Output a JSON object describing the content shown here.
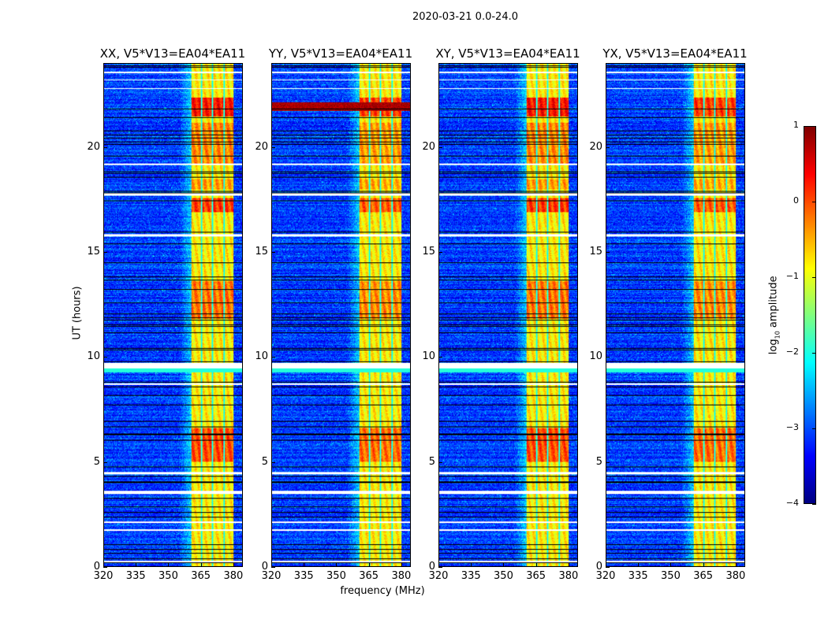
{
  "chart_data": {
    "type": "heatmap",
    "title": "2020-03-21 0.0-24.0",
    "xlabel": "frequency (MHz)",
    "ylabel": "UT (hours)",
    "xlim": [
      320,
      384.4
    ],
    "ylim": [
      0,
      24
    ],
    "xticks": [
      320,
      335,
      350,
      365,
      380
    ],
    "yticks": [
      0,
      5,
      10,
      15,
      20
    ],
    "panels": [
      {
        "title": "XX, V5*V13=EA04*EA11",
        "broadband_rfi": false
      },
      {
        "title": "YY, V5*V13=EA04*EA11",
        "broadband_rfi": true
      },
      {
        "title": "XY, V5*V13=EA04*EA11",
        "broadband_rfi": false
      },
      {
        "title": "YX, V5*V13=EA04*EA11",
        "broadband_rfi": false
      }
    ],
    "background_log_amplitude": -3.1,
    "rfi_band_mhz": [
      360.7,
      380.4
    ],
    "rfi_band_log_amplitude": -0.8,
    "rfi_gap_lines_mhz": [
      365.5,
      370.5,
      376.0
    ],
    "strong_rfi_hours": [
      [
        21.5,
        22.4,
        1.1
      ],
      [
        16.9,
        17.6,
        0.9
      ],
      [
        11.8,
        13.6,
        0.6
      ],
      [
        5.0,
        6.6,
        0.8
      ],
      [
        18.0,
        18.5,
        0.4
      ],
      [
        19.2,
        21.2,
        0.5
      ]
    ],
    "broadband_rfi_hours": [
      21.75,
      22.15
    ],
    "flagged_hours": [
      [
        23.55,
        23.62
      ],
      [
        23.2,
        23.26
      ],
      [
        22.8,
        22.85
      ],
      [
        19.15,
        19.25
      ],
      [
        17.7,
        17.8
      ],
      [
        15.75,
        15.85
      ],
      [
        9.45,
        9.7
      ],
      [
        8.65,
        8.75
      ],
      [
        4.4,
        4.5
      ],
      [
        3.45,
        3.6
      ],
      [
        2.05,
        2.15
      ],
      [
        1.7,
        1.75
      ],
      [
        0.18,
        0.25
      ]
    ],
    "cyan_hours": [
      [
        9.25,
        9.45
      ]
    ],
    "colorbar": {
      "label_main": "log",
      "label_sub": "10",
      "label_rest": " amplitude",
      "min": -4,
      "max": 1,
      "ticks": [
        1,
        0,
        -1,
        -2,
        -3,
        -4
      ],
      "tick_labels": [
        "1",
        "0",
        "−1",
        "−2",
        "−3",
        "−4"
      ],
      "colormap": "jet"
    }
  }
}
